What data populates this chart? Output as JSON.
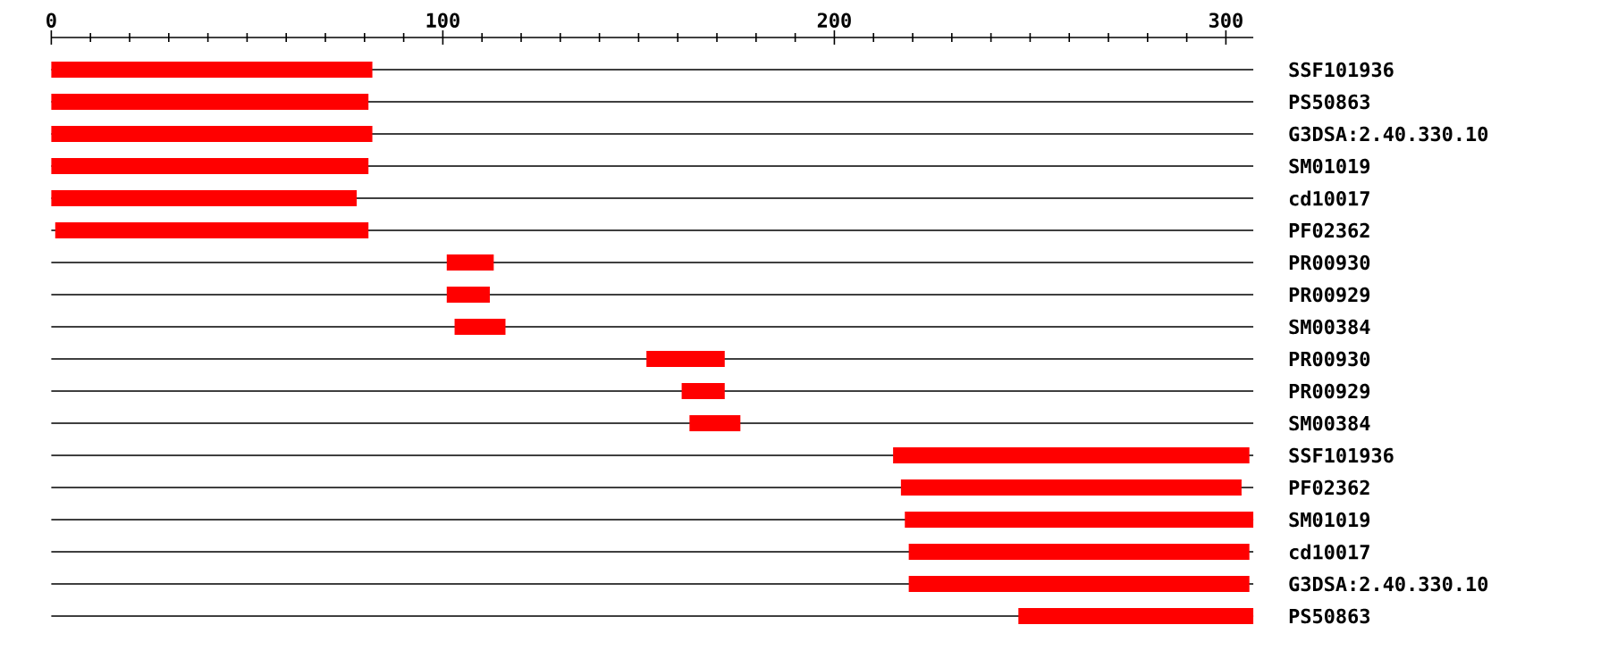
{
  "chart_data": {
    "type": "bar",
    "orientation": "horizontal",
    "color": "#ff0000",
    "categories": [
      "SSF101936",
      "PS50863",
      "G3DSA:2.40.330.10",
      "SM01019",
      "cd10017",
      "PF02362",
      "PR00930",
      "PR00929",
      "SM00384",
      "PR00930",
      "PR00929",
      "SM00384",
      "SSF101936",
      "PF02362",
      "SM01019",
      "cd10017",
      "G3DSA:2.40.330.10",
      "PS50863"
    ],
    "base": [
      0,
      0,
      0,
      0,
      0,
      1,
      101,
      101,
      103,
      152,
      161,
      163,
      215,
      217,
      218,
      219,
      219,
      247
    ],
    "values": [
      82,
      81,
      82,
      81,
      78,
      80,
      12,
      11,
      13,
      20,
      11,
      13,
      91,
      87,
      89,
      87,
      87,
      60
    ],
    "xlim": [
      0,
      307
    ],
    "xticks": [
      0,
      {
        "value": 10,
        "label": null
      },
      {
        "value": 20,
        "label": null
      },
      {
        "value": 30,
        "label": null
      },
      {
        "value": 40,
        "label": null
      },
      {
        "value": 50,
        "label": null
      },
      {
        "value": 60,
        "label": null
      },
      {
        "value": 70,
        "label": null
      },
      {
        "value": 80,
        "label": null
      },
      {
        "value": 90,
        "label": null
      },
      100,
      {
        "value": 110,
        "label": null
      },
      {
        "value": 120,
        "label": null
      },
      {
        "value": 130,
        "label": null
      },
      {
        "value": 140,
        "label": null
      },
      {
        "value": 150,
        "label": null
      },
      {
        "value": 160,
        "label": null
      },
      {
        "value": 170,
        "label": null
      },
      {
        "value": 180,
        "label": null
      },
      {
        "value": 190,
        "label": null
      },
      200,
      {
        "value": 210,
        "label": null
      },
      {
        "value": 220,
        "label": null
      },
      {
        "value": 230,
        "label": null
      },
      {
        "value": 240,
        "label": null
      },
      {
        "value": 250,
        "label": null
      },
      {
        "value": 260,
        "label": null
      },
      {
        "value": 270,
        "label": null
      },
      {
        "value": 280,
        "label": null
      },
      {
        "value": 290,
        "label": null
      },
      300
    ],
    "grid": "y"
  }
}
